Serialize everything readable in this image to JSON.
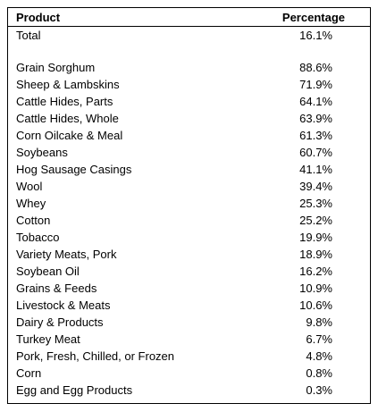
{
  "table": {
    "header": [
      "Product",
      "Percentage"
    ],
    "total": [
      "Total",
      "16.1%"
    ],
    "rows": [
      [
        "Grain Sorghum",
        "88.6%"
      ],
      [
        "Sheep & Lambskins",
        "71.9%"
      ],
      [
        "Cattle Hides, Parts",
        "64.1%"
      ],
      [
        "Cattle Hides, Whole",
        "63.9%"
      ],
      [
        "Corn Oilcake & Meal",
        "61.3%"
      ],
      [
        "Soybeans",
        "60.7%"
      ],
      [
        "Hog Sausage Casings",
        "41.1%"
      ],
      [
        "Wool",
        "39.4%"
      ],
      [
        "Whey",
        "25.3%"
      ],
      [
        "Cotton",
        "25.2%"
      ],
      [
        "Tobacco",
        "19.9%"
      ],
      [
        "Variety Meats, Pork",
        "18.9%"
      ],
      [
        "Soybean Oil",
        "16.2%"
      ],
      [
        "Grains & Feeds",
        "10.9%"
      ],
      [
        "Livestock & Meats",
        "10.6%"
      ],
      [
        "Dairy & Products",
        "9.8%"
      ],
      [
        "Turkey Meat",
        "6.7%"
      ],
      [
        "Pork, Fresh, Chilled, or Frozen",
        "4.8%"
      ],
      [
        "Corn",
        "0.8%"
      ],
      [
        "Egg and Egg Products",
        "0.3%"
      ]
    ]
  }
}
